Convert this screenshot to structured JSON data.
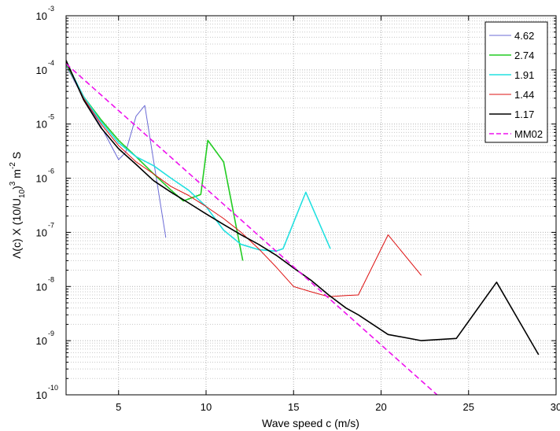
{
  "chart_data": {
    "type": "line",
    "title": "",
    "xlabel": "Wave speed c (m/s)",
    "ylabel": {
      "prefix": "Λ(c) X (10/U",
      "sub1": "10",
      "mid": ")",
      "sup1": "3",
      "unit1": " m",
      "sup2": "-2",
      "unit2": " S"
    },
    "xscale": "linear",
    "yscale": "log",
    "xlim": [
      2,
      30
    ],
    "ylim": [
      1e-10,
      0.001
    ],
    "xticks": [
      5,
      10,
      15,
      20,
      25,
      30
    ],
    "xtick_labels": [
      "5",
      "10",
      "15",
      "20",
      "25",
      "30"
    ],
    "yticks": [
      {
        "value": 1e-10,
        "base": "10",
        "exp": "-10"
      },
      {
        "value": 1e-09,
        "base": "10",
        "exp": "-9"
      },
      {
        "value": 1e-08,
        "base": "10",
        "exp": "-8"
      },
      {
        "value": 1e-07,
        "base": "10",
        "exp": "-7"
      },
      {
        "value": 1e-06,
        "base": "10",
        "exp": "-6"
      },
      {
        "value": 1e-05,
        "base": "10",
        "exp": "-5"
      },
      {
        "value": 0.0001,
        "base": "10",
        "exp": "-4"
      },
      {
        "value": 0.001,
        "base": "10",
        "exp": "-3"
      }
    ],
    "grid": true,
    "legend_position": "top-right",
    "series": [
      {
        "name": "4.62",
        "color": "#6b6bd6",
        "dash": false,
        "width": 1,
        "x": [
          2.0,
          3.0,
          4.0,
          5.0,
          5.4,
          6.0,
          6.5,
          7.7
        ],
        "y": [
          0.00012,
          3e-05,
          9e-06,
          2.2e-06,
          3e-06,
          1.4e-05,
          2.2e-05,
          8e-08
        ]
      },
      {
        "name": "2.74",
        "color": "#22cc22",
        "dash": false,
        "width": 1.6,
        "x": [
          2.0,
          3.0,
          4.0,
          5.0,
          6.0,
          7.0,
          8.0,
          8.7,
          9.7,
          10.1,
          11.0,
          12.1
        ],
        "y": [
          0.00013,
          3.2e-05,
          1.2e-05,
          5e-06,
          2.5e-06,
          1.2e-06,
          6e-07,
          3.8e-07,
          5e-07,
          5e-06,
          2e-06,
          3e-08
        ]
      },
      {
        "name": "1.91",
        "color": "#22e0e0",
        "dash": false,
        "width": 1.6,
        "x": [
          2.0,
          3.0,
          4.0,
          5.0,
          6.0,
          7.0,
          8.0,
          9.0,
          10.0,
          11.0,
          12.0,
          13.0,
          14.0,
          14.4,
          15.7,
          17.1
        ],
        "y": [
          0.00014,
          3.2e-05,
          1.1e-05,
          4.5e-06,
          2.5e-06,
          1.7e-06,
          1e-06,
          6e-07,
          3e-07,
          1.1e-07,
          6e-08,
          4.8e-08,
          4.5e-08,
          5e-08,
          5.5e-07,
          5e-08
        ]
      },
      {
        "name": "1.44",
        "color": "#dd1111",
        "dash": false,
        "width": 1,
        "x": [
          2.0,
          3.0,
          4.0,
          5.0,
          6.0,
          7.0,
          8.0,
          9.0,
          10.0,
          11.0,
          12.0,
          13.0,
          14.0,
          15.0,
          16.0,
          17.0,
          18.0,
          18.7,
          20.4,
          22.3
        ],
        "y": [
          0.00014,
          3e-05,
          1e-05,
          4e-06,
          2e-06,
          1.2e-06,
          7e-07,
          4.8e-07,
          3e-07,
          1.8e-07,
          1e-07,
          5e-08,
          2.3e-08,
          1e-08,
          8e-09,
          6.5e-09,
          6.8e-09,
          7e-09,
          9e-08,
          1.6e-08
        ]
      },
      {
        "name": "1.17",
        "color": "#000000",
        "dash": false,
        "width": 1.6,
        "x": [
          2.0,
          3.0,
          4.0,
          5.0,
          6.0,
          7.0,
          8.0,
          9.0,
          10.0,
          11.0,
          12.0,
          13.0,
          14.0,
          15.0,
          16.0,
          17.0,
          18.0,
          18.7,
          20.4,
          22.3,
          24.3,
          26.6,
          29.0
        ],
        "y": [
          0.00015,
          2.8e-05,
          8.5e-06,
          3.5e-06,
          1.8e-06,
          9e-07,
          5.5e-07,
          3.5e-07,
          2.2e-07,
          1.4e-07,
          9e-08,
          6e-08,
          3.8e-08,
          2.2e-08,
          1.3e-08,
          7e-09,
          4e-09,
          3e-09,
          1.3e-09,
          1e-09,
          1.1e-09,
          1.2e-08,
          5.5e-10
        ]
      },
      {
        "name": "MM02",
        "color": "#ee11ee",
        "dash": true,
        "width": 1.6,
        "x": [
          2.0,
          23.2
        ],
        "y": [
          0.00013,
          1e-10
        ]
      }
    ]
  }
}
